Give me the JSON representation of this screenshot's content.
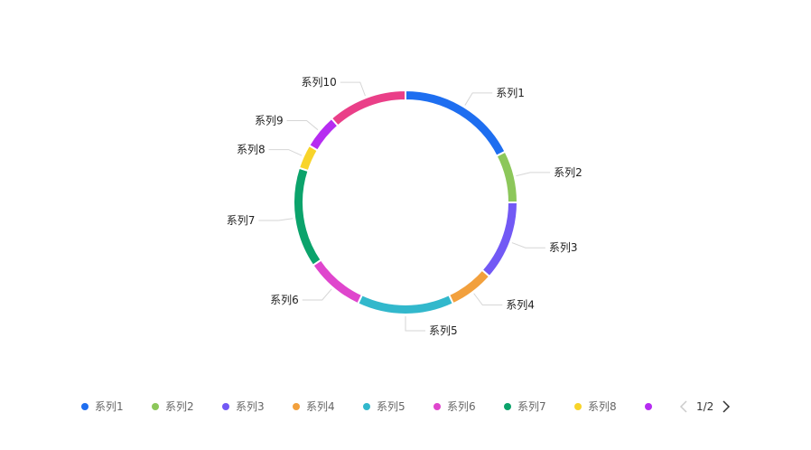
{
  "chart_data": {
    "type": "pie",
    "variant": "donut",
    "series": [
      {
        "name": "系列1",
        "value": 17.5,
        "color": "#1E6EF0"
      },
      {
        "name": "系列2",
        "value": 7.5,
        "color": "#8CC75A"
      },
      {
        "name": "系列3",
        "value": 11.5,
        "color": "#7259F5"
      },
      {
        "name": "系列4",
        "value": 6.5,
        "color": "#F2A03D"
      },
      {
        "name": "系列5",
        "value": 14.0,
        "color": "#32B8CC"
      },
      {
        "name": "系列6",
        "value": 8.5,
        "color": "#DF46CD"
      },
      {
        "name": "系列7",
        "value": 14.5,
        "color": "#0BA36B"
      },
      {
        "name": "系列8",
        "value": 3.5,
        "color": "#F8D42A"
      },
      {
        "name": "系列9",
        "value": 5.0,
        "color": "#B62CF1"
      },
      {
        "name": "系列10",
        "value": 11.5,
        "color": "#EA3F88"
      }
    ],
    "legend": {
      "position": "bottom",
      "visible_items": 9,
      "page": "1/2"
    }
  }
}
